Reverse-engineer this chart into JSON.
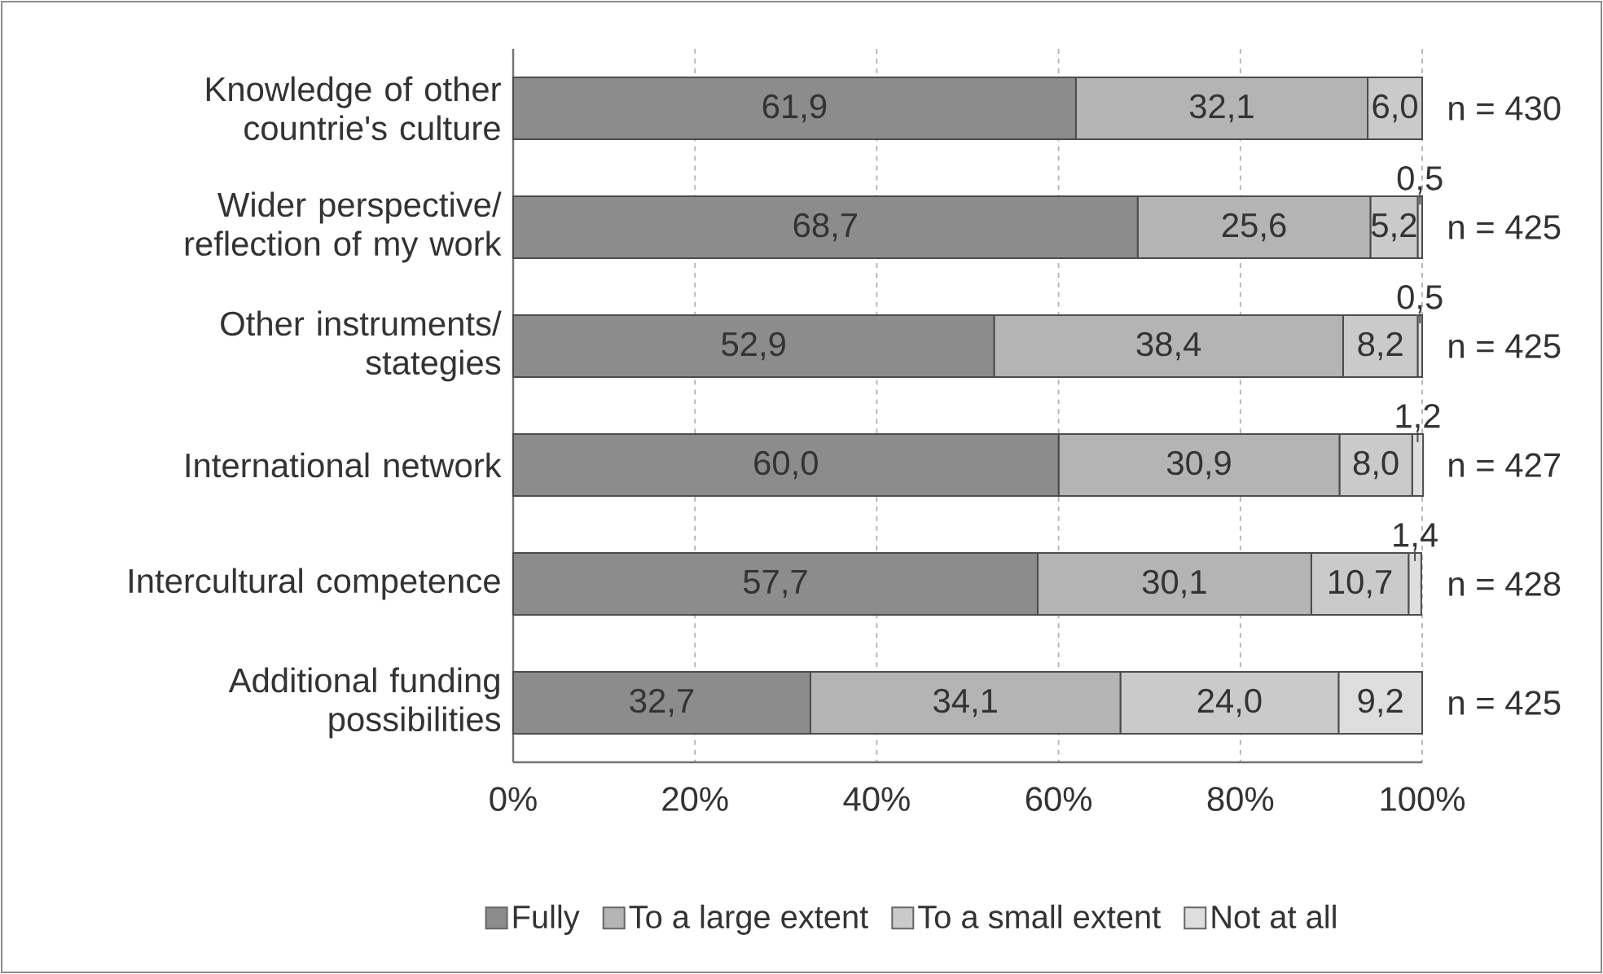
{
  "chart_data": {
    "type": "bar",
    "orientation": "horizontal",
    "stacked": true,
    "categories": [
      "Knowledge of other countrie's culture",
      "Wider perspective/ reflection of my work",
      "Other instruments/ stategies",
      "International network",
      "Intercultural competence",
      "Additional funding possibilities"
    ],
    "series": [
      {
        "name": "Fully",
        "color": "#8c8c8c",
        "values": [
          61.9,
          68.7,
          52.9,
          60.0,
          57.7,
          32.7
        ],
        "value_labels": [
          "61,9",
          "68,7",
          "52,9",
          "60,0",
          "57,7",
          "32,7"
        ]
      },
      {
        "name": "To a large extent",
        "color": "#b4b4b4",
        "values": [
          32.1,
          25.6,
          38.4,
          30.9,
          30.1,
          34.1
        ],
        "value_labels": [
          "32,1",
          "25,6",
          "38,4",
          "30,9",
          "30,1",
          "34,1"
        ]
      },
      {
        "name": "To a small extent",
        "color": "#cacaca",
        "values": [
          6.0,
          5.2,
          8.2,
          8.0,
          10.7,
          24.0
        ],
        "value_labels": [
          "6,0",
          "5,2",
          "8,2",
          "8,0",
          "10,7",
          "24,0"
        ]
      },
      {
        "name": "Not at all",
        "color": "#dedede",
        "values": [
          null,
          0.5,
          0.5,
          1.2,
          1.4,
          9.2
        ],
        "value_labels": [
          null,
          "0,5",
          "0,5",
          "1,2",
          "1,4",
          "9,2"
        ]
      }
    ],
    "xlim": [
      0,
      100
    ],
    "xticks": [
      {
        "value": 0,
        "label": "0%"
      },
      {
        "value": 20,
        "label": "20%"
      },
      {
        "value": 40,
        "label": "40%"
      },
      {
        "value": 60,
        "label": "60%"
      },
      {
        "value": 80,
        "label": "80%"
      },
      {
        "value": 100,
        "label": "100%"
      }
    ],
    "grid": "x",
    "legend": "bottom",
    "annotations": [
      "n = 430",
      "n = 425",
      "n = 425",
      "n = 427",
      "n = 428",
      "n = 425"
    ]
  }
}
